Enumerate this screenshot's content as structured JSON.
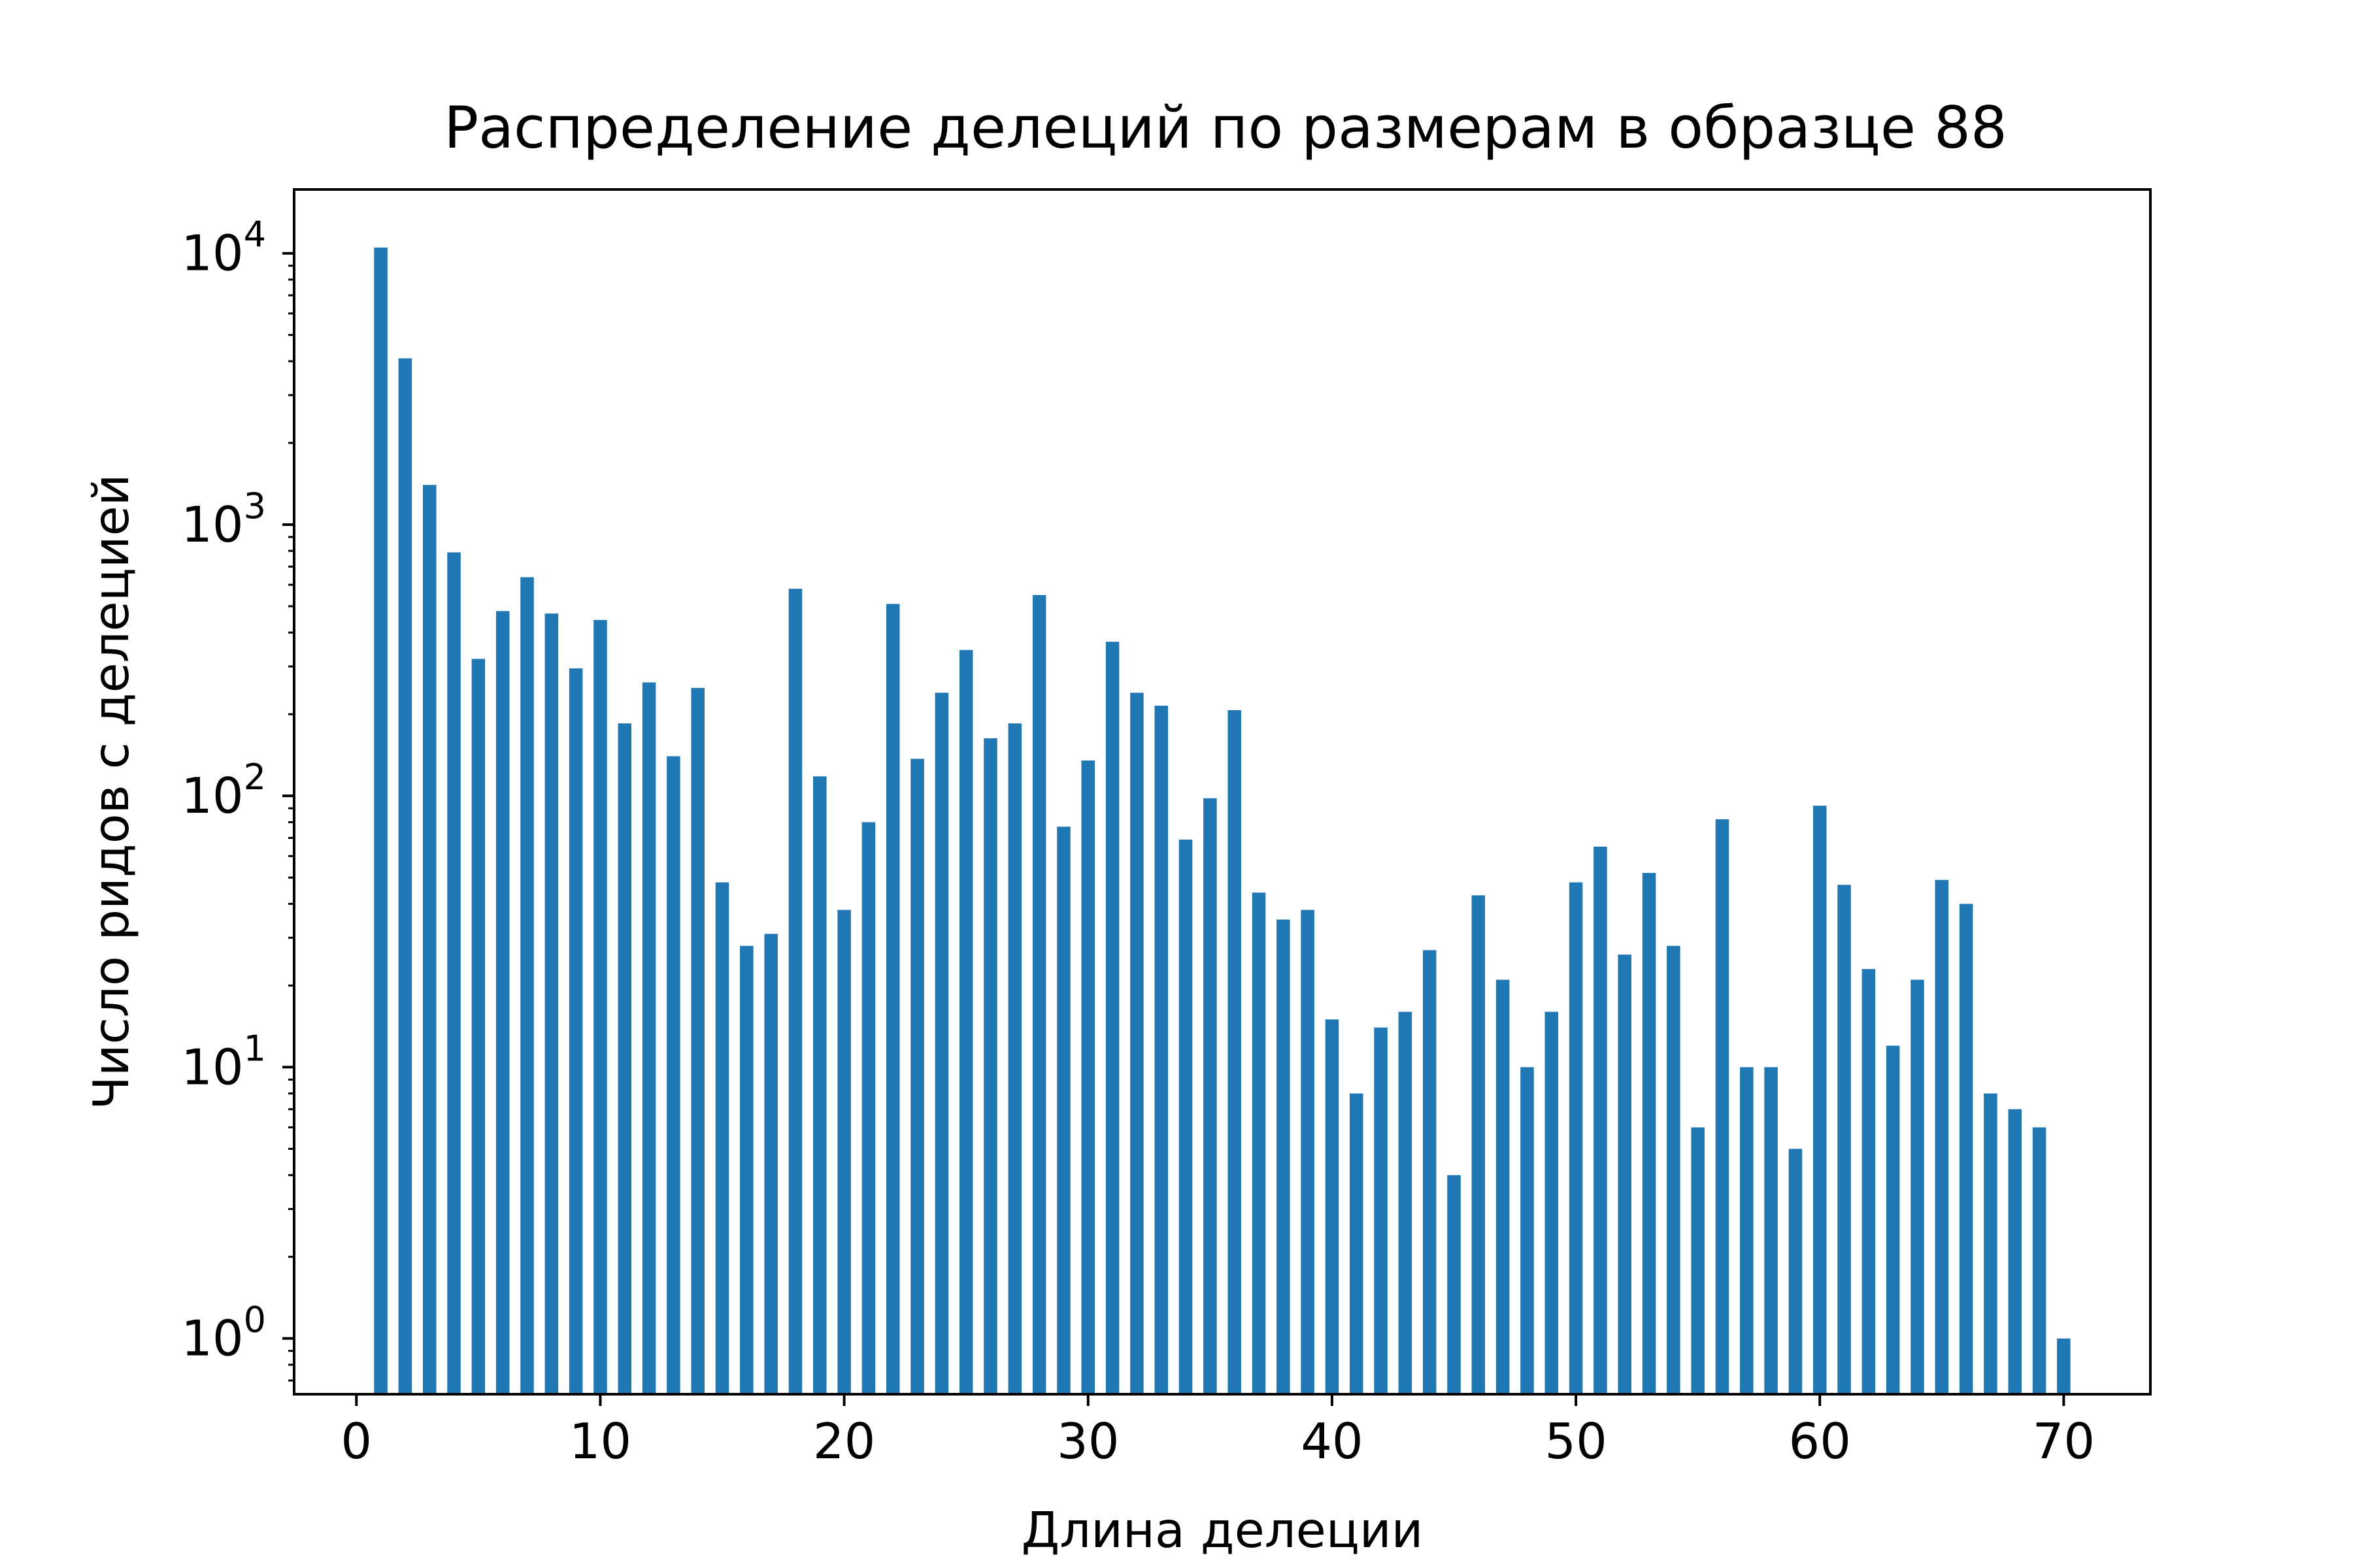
{
  "chart_data": {
    "type": "bar",
    "title": "Распределение делеций по размерам в образце 88",
    "xlabel": "Длина делеции",
    "ylabel": "Число ридов с делецией",
    "yscale": "log",
    "xlim": [
      -2.5,
      73.5
    ],
    "ylim": [
      0.63,
      17000
    ],
    "xticks": [
      0,
      10,
      20,
      30,
      40,
      50,
      60,
      70
    ],
    "yticks": [
      {
        "value": 1,
        "base": "10",
        "exp": "0"
      },
      {
        "value": 10,
        "base": "10",
        "exp": "1"
      },
      {
        "value": 100,
        "base": "10",
        "exp": "2"
      },
      {
        "value": 1000,
        "base": "10",
        "exp": "3"
      },
      {
        "value": 10000,
        "base": "10",
        "exp": "4"
      }
    ],
    "bar_color": "#1f77b4",
    "grid": false,
    "x": [
      1,
      2,
      3,
      4,
      5,
      6,
      7,
      8,
      9,
      10,
      11,
      12,
      13,
      14,
      15,
      16,
      17,
      18,
      19,
      20,
      21,
      22,
      23,
      24,
      25,
      26,
      27,
      28,
      29,
      30,
      31,
      32,
      33,
      34,
      35,
      36,
      37,
      38,
      39,
      40,
      41,
      42,
      43,
      44,
      45,
      46,
      47,
      48,
      49,
      50,
      51,
      52,
      53,
      54,
      55,
      56,
      57,
      58,
      59,
      60,
      61,
      62,
      63,
      64,
      65,
      66,
      67,
      68,
      69,
      70
    ],
    "values": [
      10500,
      4100,
      1400,
      790,
      320,
      480,
      640,
      470,
      295,
      445,
      185,
      262,
      140,
      250,
      48,
      28,
      31,
      580,
      118,
      38,
      80,
      510,
      137,
      240,
      345,
      163,
      185,
      550,
      77,
      135,
      370,
      240,
      215,
      69,
      98,
      207,
      44,
      35,
      38,
      15,
      8,
      14,
      16,
      27,
      4,
      43,
      21,
      10,
      16,
      48,
      65,
      26,
      52,
      28,
      6,
      82,
      10,
      10,
      5,
      92,
      47,
      23,
      12,
      21,
      49,
      40,
      8,
      7,
      6,
      1
    ]
  }
}
